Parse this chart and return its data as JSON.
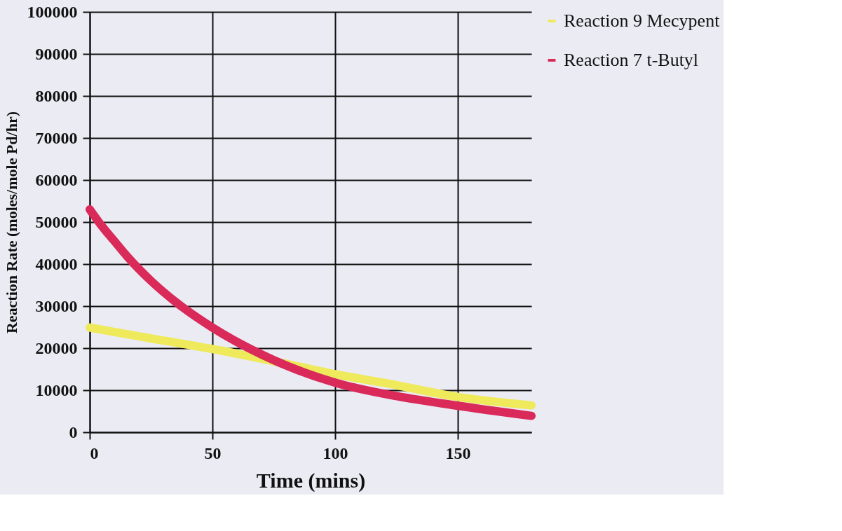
{
  "chart_data": {
    "type": "line",
    "xlabel": "Time (mins)",
    "ylabel": "Reaction Rate (moles/mole Pd/hr)",
    "xlim": [
      0,
      180
    ],
    "xticks": [
      0,
      50,
      100,
      150
    ],
    "ylim": [
      0,
      100000
    ],
    "yticks": [
      0,
      10000,
      20000,
      30000,
      40000,
      50000,
      60000,
      70000,
      80000,
      90000,
      100000
    ],
    "grid": true,
    "legend": "right",
    "marker": "none",
    "line_style": "solid",
    "series": [
      {
        "name": "Reaction 9 Mecypent",
        "color": "#eeea5c",
        "x": [
          0,
          25,
          50,
          75,
          100,
          125,
          150,
          180
        ],
        "values": [
          24900,
          22300,
          19800,
          16900,
          13800,
          11200,
          8400,
          6400
        ]
      },
      {
        "name": "Reaction 7 t-Butyl",
        "color": "#d92a5a",
        "x": [
          0,
          5,
          10,
          15,
          25,
          35,
          50,
          70,
          100,
          125,
          150,
          180
        ],
        "values": [
          53000,
          49000,
          45500,
          42000,
          36000,
          31000,
          24900,
          18500,
          11800,
          8600,
          6300,
          3900
        ]
      }
    ]
  }
}
